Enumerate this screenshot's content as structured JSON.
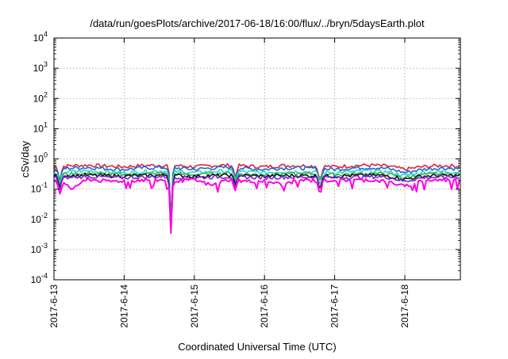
{
  "chart_data": {
    "type": "line",
    "title": "/data/run/goesPlots/archive/2017-06-18/16:00/flux/../bryn/5daysEarth.plot",
    "xlabel": "Coordinated Universal Time (UTC)",
    "ylabel": "cSv/day",
    "yscale": "log",
    "ylim": [
      0.0001,
      10000
    ],
    "xlim": [
      "2017-06-13 00:00",
      "2017-06-18 19:00"
    ],
    "grid": true,
    "legend": "none",
    "x_ticks": [
      "2017-6-13",
      "2017-6-14",
      "2017-6-15",
      "2017-6-16",
      "2017-6-17",
      "2017-6-18"
    ],
    "y_ticks": [
      {
        "base": "10",
        "exp": "-4"
      },
      {
        "base": "10",
        "exp": "-3"
      },
      {
        "base": "10",
        "exp": "-2"
      },
      {
        "base": "10",
        "exp": "-1"
      },
      {
        "base": "10",
        "exp": "0"
      },
      {
        "base": "10",
        "exp": "1"
      },
      {
        "base": "10",
        "exp": "2"
      },
      {
        "base": "10",
        "exp": "3"
      },
      {
        "base": "10",
        "exp": "4"
      }
    ],
    "x": [
      "2017-06-13 00:00",
      "2017-06-13 06:00",
      "2017-06-13 12:00",
      "2017-06-13 18:00",
      "2017-06-14 00:00",
      "2017-06-14 06:00",
      "2017-06-14 12:00",
      "2017-06-14 18:00",
      "2017-06-15 00:00",
      "2017-06-15 06:00",
      "2017-06-15 12:00",
      "2017-06-15 18:00",
      "2017-06-16 00:00",
      "2017-06-16 06:00",
      "2017-06-16 12:00",
      "2017-06-16 18:00",
      "2017-06-17 00:00",
      "2017-06-17 06:00",
      "2017-06-17 12:00",
      "2017-06-17 18:00",
      "2017-06-18 00:00",
      "2017-06-18 06:00",
      "2017-06-18 12:00",
      "2017-06-18 18:00"
    ],
    "series": [
      {
        "color": "#e0203a",
        "values": [
          0.55,
          0.6,
          0.62,
          0.58,
          0.55,
          0.6,
          0.62,
          0.6,
          0.55,
          0.6,
          0.62,
          0.58,
          0.55,
          0.6,
          0.6,
          0.58,
          0.55,
          0.6,
          0.62,
          0.58,
          0.45,
          0.55,
          0.6,
          0.58
        ]
      },
      {
        "color": "#1a6bd8",
        "values": [
          0.45,
          0.5,
          0.52,
          0.48,
          0.45,
          0.5,
          0.52,
          0.5,
          0.45,
          0.5,
          0.52,
          0.48,
          0.45,
          0.5,
          0.5,
          0.48,
          0.45,
          0.5,
          0.52,
          0.48,
          0.35,
          0.45,
          0.5,
          0.48
        ]
      },
      {
        "color": "#2bd4d4",
        "values": [
          0.35,
          0.38,
          0.4,
          0.37,
          0.35,
          0.38,
          0.4,
          0.38,
          0.35,
          0.38,
          0.4,
          0.37,
          0.35,
          0.38,
          0.38,
          0.37,
          0.35,
          0.38,
          0.4,
          0.37,
          0.28,
          0.35,
          0.38,
          0.37
        ]
      },
      {
        "color": "#2fb84a",
        "values": [
          0.3,
          0.32,
          0.33,
          0.31,
          0.3,
          0.32,
          0.33,
          0.32,
          0.3,
          0.32,
          0.33,
          0.31,
          0.3,
          0.32,
          0.32,
          0.31,
          0.3,
          0.32,
          0.33,
          0.31,
          0.24,
          0.3,
          0.32,
          0.31
        ]
      },
      {
        "color": "#111111",
        "values": [
          0.27,
          0.28,
          0.29,
          0.28,
          0.27,
          0.28,
          0.29,
          0.28,
          0.27,
          0.28,
          0.29,
          0.28,
          0.27,
          0.28,
          0.28,
          0.28,
          0.27,
          0.28,
          0.29,
          0.28,
          0.21,
          0.27,
          0.28,
          0.28
        ]
      },
      {
        "color": "#7b1fd0",
        "values": [
          0.24,
          0.25,
          0.26,
          0.25,
          0.24,
          0.25,
          0.26,
          0.25,
          0.24,
          0.25,
          0.26,
          0.25,
          0.24,
          0.25,
          0.25,
          0.25,
          0.24,
          0.25,
          0.26,
          0.25,
          0.18,
          0.24,
          0.25,
          0.25
        ]
      },
      {
        "color": "#ff00e6",
        "values": [
          0.2,
          0.1,
          0.21,
          0.18,
          0.19,
          0.2,
          0.2,
          0.19,
          0.2,
          0.13,
          0.21,
          0.18,
          0.19,
          0.14,
          0.2,
          0.19,
          0.2,
          0.2,
          0.2,
          0.18,
          0.12,
          0.19,
          0.2,
          0.2
        ]
      }
    ],
    "spikes": [
      {
        "x": "2017-06-14 16:00",
        "y": 0.0035
      },
      {
        "x": "2017-06-16 19:00",
        "y": 0.045
      },
      {
        "x": "2017-06-13 02:00",
        "y": 0.07
      },
      {
        "x": "2017-06-15 14:00",
        "y": 0.09
      }
    ]
  }
}
